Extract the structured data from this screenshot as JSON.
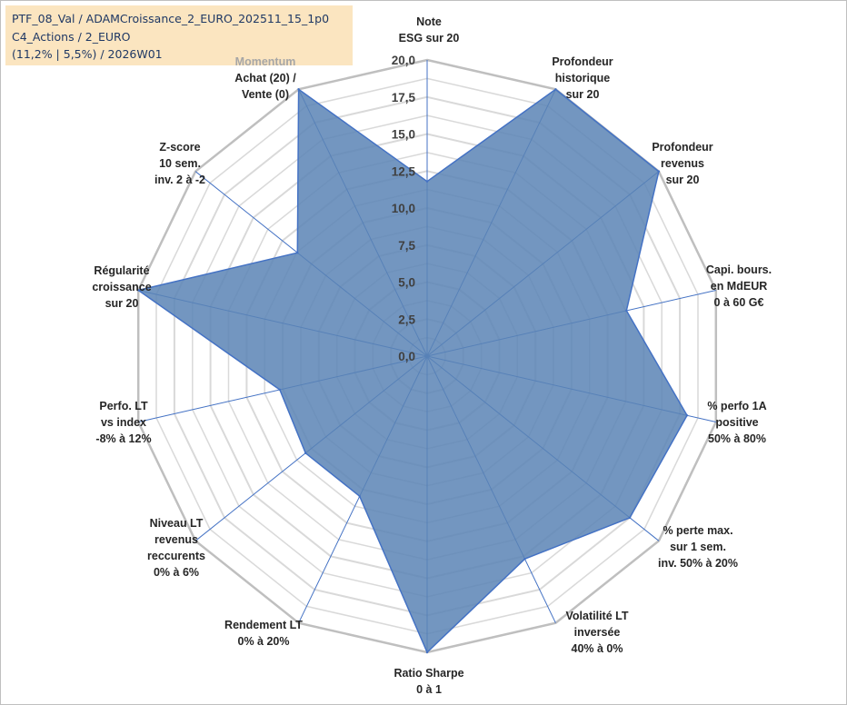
{
  "header": {
    "line1": "PTF_08_Val / ADAMCroissance_2_EURO_202511_15_1p0",
    "line2": "C4_Actions / 2_EURO",
    "line3": "(11,2% | 5,5%) / 2026W01"
  },
  "colors": {
    "fill": "#5b84b5",
    "stroke": "#4472c4",
    "grid_outer": "#bfbfbf",
    "grid_inner": "#d9d9d9",
    "accent_label": "#a6a6a6",
    "header_bg": "#fbe5c0"
  },
  "chart_data": {
    "type": "radar",
    "title": "",
    "ylim": [
      0,
      20
    ],
    "tick_labels": [
      "0,0",
      "2,5",
      "5,0",
      "7,5",
      "10,0",
      "12,5",
      "15,0",
      "17,5",
      "20,0"
    ],
    "categories": [
      {
        "lines": [
          "Note",
          "ESG sur 20"
        ]
      },
      {
        "lines": [
          "Profondeur",
          "historique",
          "sur 20"
        ]
      },
      {
        "lines": [
          "Profondeur",
          "revenus",
          "sur 20"
        ]
      },
      {
        "lines": [
          "Capi. bours.",
          "en MdEUR",
          "0 à 60 G€"
        ]
      },
      {
        "lines": [
          "% perfo 1A",
          "positive",
          "50% à 80%"
        ]
      },
      {
        "lines": [
          "% perte max.",
          "sur 1 sem.",
          "inv. 50% à 20%"
        ]
      },
      {
        "lines": [
          "Volatilité LT",
          "inversée",
          "40% à 0%"
        ]
      },
      {
        "lines": [
          "Ratio Sharpe",
          "0 à 1"
        ]
      },
      {
        "lines": [
          "Rendement LT",
          "0% à 20%"
        ]
      },
      {
        "lines": [
          "Niveau LT",
          "revenus",
          "reccurents",
          "0% à 6%"
        ]
      },
      {
        "lines": [
          "Perfo. LT",
          "vs index",
          "-8% à 12%"
        ]
      },
      {
        "lines": [
          "Régularité",
          "croissance",
          "sur 20"
        ]
      },
      {
        "lines": [
          "Z-score",
          "10 sem.",
          "inv. 2 à -2"
        ]
      },
      {
        "lines": [
          "Momentum",
          "Achat (20) /",
          "Vente (0)"
        ],
        "accent_first_line": true
      }
    ],
    "series": [
      {
        "values": [
          11.8,
          20,
          20,
          13.8,
          18,
          17.5,
          15.2,
          20,
          10.5,
          10.5,
          10.2,
          20,
          11.2,
          20
        ]
      }
    ],
    "grid": true,
    "legend": "none"
  }
}
